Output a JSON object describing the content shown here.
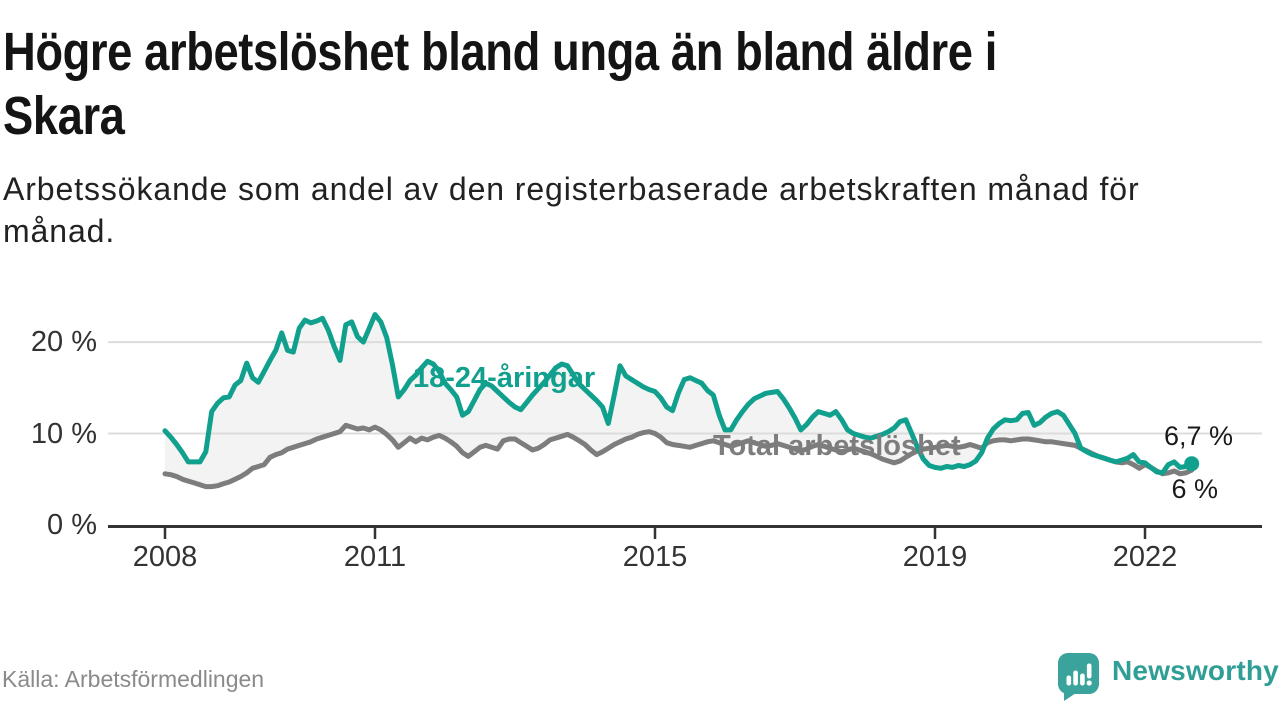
{
  "title": "Högre arbetslöshet bland unga än bland äldre i\nSkara",
  "subtitle": "Arbetssökande som andel av den registerbaserade arbetskraften månad för\nmånad.",
  "source": "Källa: Arbetsförmedlingen",
  "logo": {
    "text": "Newsworthy",
    "text_color": "#2f9e96",
    "icon_color": "#3aa39c",
    "icon": "bar-chart-pin-icon"
  },
  "chart_data": {
    "type": "line",
    "x_start_year": 2008,
    "x_step_months": 1,
    "ylim": [
      0,
      24
    ],
    "grid": "horizontal",
    "area_fill": "#f3f3f3",
    "grid_color": "#dcdcdc",
    "axis_color": "#333333",
    "y_ticks": [
      {
        "value": 0,
        "label": "0 %"
      },
      {
        "value": 10,
        "label": "10 %"
      },
      {
        "value": 20,
        "label": "20 %"
      }
    ],
    "x_ticks": [
      {
        "year": 2008,
        "label": "2008"
      },
      {
        "year": 2011,
        "label": "2011"
      },
      {
        "year": 2015,
        "label": "2015"
      },
      {
        "year": 2019,
        "label": "2019"
      },
      {
        "year": 2022,
        "label": "2022"
      }
    ],
    "series": [
      {
        "name": "18-24-åringar",
        "color": "#12a08e",
        "end_label": "6,7 %",
        "end_value": 6.7,
        "values": [
          10.3,
          9.6,
          8.8,
          7.9,
          6.9,
          6.9,
          6.9,
          8.0,
          12.4,
          13.3,
          13.9,
          14.0,
          15.3,
          15.8,
          17.7,
          16.1,
          15.6,
          16.8,
          18.0,
          19.1,
          21.0,
          19.1,
          18.9,
          21.5,
          22.4,
          22.1,
          22.3,
          22.6,
          21.3,
          19.5,
          18.0,
          21.9,
          22.2,
          20.6,
          20.0,
          21.5,
          23.0,
          22.2,
          20.5,
          17.5,
          14.0,
          14.8,
          15.8,
          16.4,
          17.2,
          17.9,
          17.6,
          16.8,
          15.5,
          14.8,
          14.0,
          12.0,
          12.4,
          13.6,
          14.8,
          15.5,
          15.2,
          14.6,
          14.0,
          13.4,
          12.9,
          12.6,
          13.4,
          14.2,
          14.9,
          15.6,
          16.4,
          17.2,
          17.6,
          17.4,
          16.4,
          15.4,
          14.8,
          14.2,
          13.6,
          12.9,
          11.1,
          14.2,
          17.4,
          16.3,
          15.9,
          15.5,
          15.1,
          14.8,
          14.6,
          13.9,
          12.9,
          12.5,
          14.4,
          15.9,
          16.1,
          15.8,
          15.5,
          14.7,
          14.2,
          12.0,
          10.4,
          10.4,
          11.5,
          12.4,
          13.2,
          13.8,
          14.1,
          14.4,
          14.5,
          14.6,
          13.8,
          12.8,
          11.7,
          10.4,
          11.0,
          11.8,
          12.4,
          12.2,
          12.0,
          12.4,
          11.5,
          10.4,
          10.0,
          9.8,
          9.6,
          9.5,
          9.7,
          9.9,
          10.2,
          10.6,
          11.3,
          11.5,
          10.0,
          8.5,
          7.2,
          6.5,
          6.3,
          6.2,
          6.4,
          6.3,
          6.5,
          6.4,
          6.6,
          7.0,
          7.9,
          9.5,
          10.5,
          11.1,
          11.5,
          11.4,
          11.5,
          12.2,
          12.3,
          10.9,
          11.2,
          11.8,
          12.2,
          12.4,
          12.0,
          11.0,
          10.0,
          8.4,
          8.0,
          7.7,
          7.5,
          7.3,
          7.1,
          6.9,
          7.1,
          7.3,
          7.7,
          6.9,
          6.8,
          6.3,
          5.8,
          5.7,
          6.6,
          6.9,
          6.3,
          6.4,
          6.7
        ]
      },
      {
        "name": "Total arbetslöshet",
        "color": "#7d7d7d",
        "end_label": "6 %",
        "end_value": 6.0,
        "values": [
          5.6,
          5.5,
          5.3,
          5.0,
          4.8,
          4.6,
          4.4,
          4.2,
          4.2,
          4.3,
          4.5,
          4.7,
          5.0,
          5.3,
          5.7,
          6.2,
          6.4,
          6.6,
          7.4,
          7.7,
          7.9,
          8.3,
          8.5,
          8.7,
          8.9,
          9.1,
          9.4,
          9.6,
          9.8,
          10.0,
          10.2,
          10.9,
          10.7,
          10.5,
          10.6,
          10.4,
          10.7,
          10.4,
          9.9,
          9.3,
          8.5,
          9.0,
          9.5,
          9.1,
          9.5,
          9.3,
          9.6,
          9.8,
          9.5,
          9.1,
          8.6,
          7.9,
          7.5,
          8.0,
          8.5,
          8.7,
          8.5,
          8.3,
          9.2,
          9.4,
          9.4,
          9.0,
          8.6,
          8.2,
          8.4,
          8.8,
          9.3,
          9.5,
          9.7,
          9.9,
          9.6,
          9.2,
          8.8,
          8.2,
          7.7,
          8.0,
          8.4,
          8.8,
          9.1,
          9.4,
          9.6,
          9.9,
          10.1,
          10.2,
          10.0,
          9.6,
          9.0,
          8.8,
          8.7,
          8.6,
          8.5,
          8.7,
          8.9,
          9.1,
          9.2,
          9.0,
          8.8,
          8.6,
          8.8,
          9.0,
          9.2,
          9.0,
          8.8,
          8.6,
          8.7,
          8.9,
          8.7,
          8.5,
          8.3,
          8.1,
          8.3,
          8.6,
          8.8,
          8.6,
          8.4,
          8.2,
          8.0,
          8.2,
          8.4,
          8.2,
          8.0,
          7.8,
          7.5,
          7.2,
          7.0,
          6.8,
          7.0,
          7.4,
          7.8,
          8.1,
          8.3,
          8.4,
          8.5,
          8.6,
          8.7,
          8.6,
          8.5,
          8.6,
          8.8,
          8.6,
          8.4,
          9.0,
          9.2,
          9.3,
          9.3,
          9.2,
          9.3,
          9.4,
          9.4,
          9.3,
          9.2,
          9.1,
          9.1,
          9.0,
          8.9,
          8.8,
          8.7,
          8.4,
          8.1,
          7.8,
          7.5,
          7.3,
          7.1,
          6.9,
          6.8,
          6.9,
          6.6,
          6.2,
          6.6,
          6.3,
          5.9,
          5.6,
          5.7,
          5.9,
          5.6,
          5.7,
          6.0
        ]
      }
    ]
  }
}
